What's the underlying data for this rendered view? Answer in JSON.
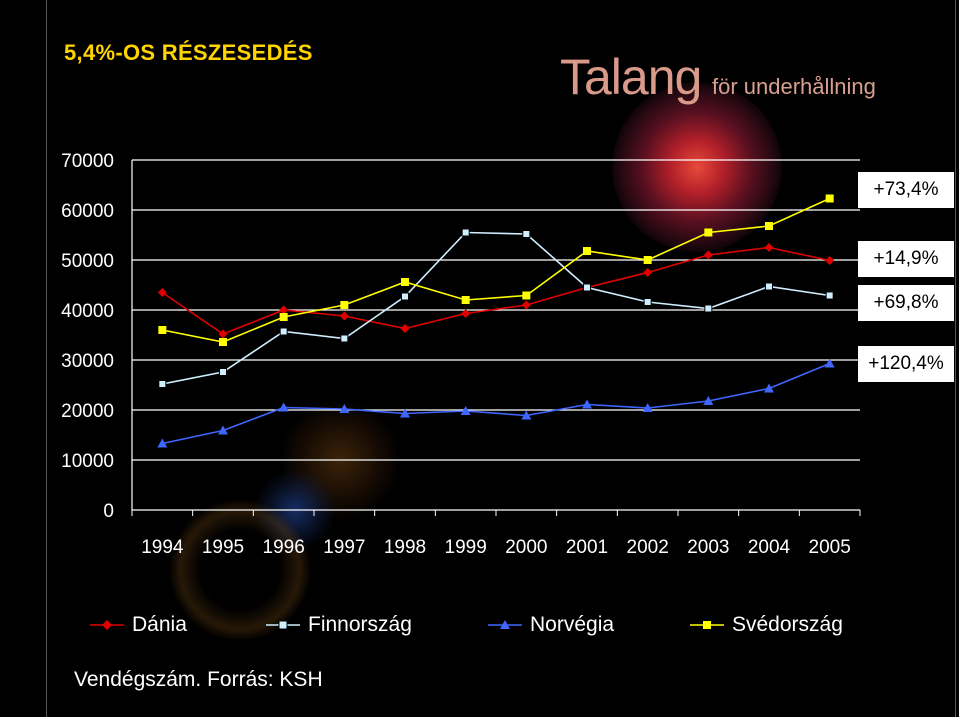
{
  "title": "5,4%-OS RÉSZESEDÉS",
  "brand": {
    "name": "Talang",
    "tagline": "för underhållning"
  },
  "colors": {
    "background": "#000000",
    "title": "#ffd400",
    "Dánia": "#e00000",
    "Finnország": "#cfefff",
    "Norvégia": "#3f66ff",
    "Svédország": "#ffff00"
  },
  "chart_data": {
    "type": "line",
    "x": [
      "1994",
      "1995",
      "1996",
      "1997",
      "1998",
      "1999",
      "2000",
      "2001",
      "2002",
      "2003",
      "2004",
      "2005"
    ],
    "ylim": [
      0,
      70000
    ],
    "yticks": [
      0,
      10000,
      20000,
      30000,
      40000,
      50000,
      60000,
      70000
    ],
    "grid": "horizontal",
    "legend_position": "bottom",
    "series": [
      {
        "name": "Dánia",
        "marker": "diamond",
        "values": [
          43500,
          35200,
          40000,
          38800,
          36300,
          39300,
          41000,
          44500,
          47500,
          51000,
          52500,
          49900
        ]
      },
      {
        "name": "Finnország",
        "marker": "square-open",
        "values": [
          25200,
          27600,
          35700,
          34300,
          42700,
          55500,
          55200,
          44500,
          41600,
          40300,
          44700,
          42900
        ]
      },
      {
        "name": "Norvégia",
        "marker": "triangle",
        "values": [
          13300,
          15900,
          20500,
          20200,
          19300,
          19800,
          18900,
          21100,
          20400,
          21800,
          24300,
          29300
        ]
      },
      {
        "name": "Svédország",
        "marker": "square",
        "values": [
          36000,
          33600,
          38600,
          41000,
          45600,
          42000,
          42900,
          51800,
          50000,
          55500,
          56800,
          62300
        ]
      }
    ],
    "annotations": [
      "+73,4%",
      "+14,9%",
      "+69,8%",
      "+120,4%"
    ]
  },
  "footnote": "Vendégszám. Forrás: KSH"
}
